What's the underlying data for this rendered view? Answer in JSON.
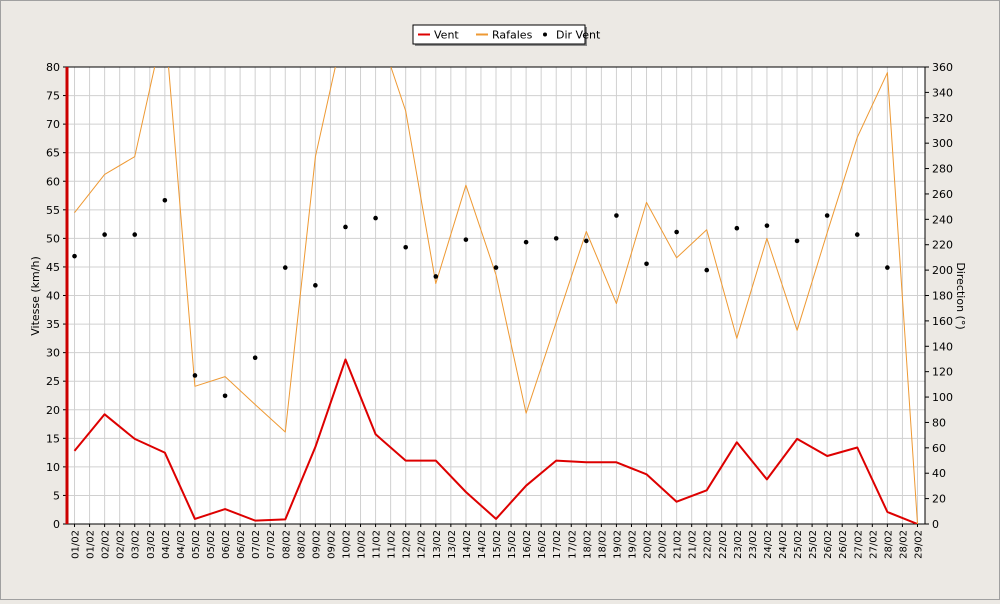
{
  "chart_data": {
    "type": "line",
    "legend": {
      "position": "top-center",
      "items": [
        {
          "name": "Vent",
          "color": "#dd0000",
          "marker": "line"
        },
        {
          "name": "Rafales",
          "color": "#ee9933",
          "marker": "line"
        },
        {
          "name": "Dir Vent",
          "color": "#000000",
          "marker": "dot"
        }
      ]
    },
    "ylabel": "Vitesse (km/h)",
    "y2label": "Direction (°)",
    "ylim": [
      0,
      80
    ],
    "y2lim": [
      0,
      360
    ],
    "yticks": [
      0,
      5,
      10,
      15,
      20,
      25,
      30,
      35,
      40,
      45,
      50,
      55,
      60,
      65,
      70,
      75,
      80
    ],
    "y2ticks": [
      0,
      20,
      40,
      60,
      80,
      100,
      120,
      140,
      160,
      180,
      200,
      220,
      240,
      260,
      280,
      300,
      320,
      340,
      360
    ],
    "grid": true,
    "x_labels": [
      "01/02",
      "01/02",
      "02/02",
      "02/02",
      "03/02",
      "03/02",
      "04/02",
      "04/02",
      "05/02",
      "05/02",
      "06/02",
      "06/02",
      "07/02",
      "07/02",
      "08/02",
      "08/02",
      "09/02",
      "09/02",
      "10/02",
      "10/02",
      "11/02",
      "11/02",
      "12/02",
      "12/02",
      "13/02",
      "13/02",
      "14/02",
      "14/02",
      "15/02",
      "15/02",
      "16/02",
      "16/02",
      "17/02",
      "17/02",
      "18/02",
      "18/02",
      "19/02",
      "19/02",
      "20/02",
      "20/02",
      "21/02",
      "21/02",
      "22/02",
      "22/02",
      "23/02",
      "23/02",
      "24/02",
      "24/02",
      "25/02",
      "25/02",
      "26/02",
      "26/02",
      "27/02",
      "27/02",
      "28/02",
      "28/02",
      "29/02"
    ],
    "x": [
      "01/02",
      "02/02",
      "03/02",
      "04/02",
      "05/02",
      "06/02",
      "07/02",
      "08/02",
      "09/02",
      "10/02",
      "11/02",
      "12/02",
      "13/02",
      "14/02",
      "15/02",
      "16/02",
      "17/02",
      "18/02",
      "19/02",
      "20/02",
      "21/02",
      "22/02",
      "23/02",
      "24/02",
      "25/02",
      "26/02",
      "27/02",
      "28/02",
      "29/02"
    ],
    "series": [
      {
        "name": "Vent",
        "color": "#dd0000",
        "axis": "left",
        "style": "line-thick",
        "values": [
          12.8,
          19.2,
          14.9,
          12.5,
          0.9,
          2.6,
          0.6,
          0.8,
          13.5,
          28.8,
          15.7,
          11.1,
          11.1,
          5.6,
          0.9,
          6.7,
          11.1,
          10.8,
          10.8,
          8.7,
          3.9,
          5.9,
          14.3,
          7.8,
          14.9,
          11.9,
          13.4,
          2.1,
          0.0
        ]
      },
      {
        "name": "Rafales",
        "color": "#ee9933",
        "axis": "left",
        "style": "line",
        "values": [
          54.5,
          61.2,
          64.3,
          88,
          24.1,
          25.8,
          20.9,
          16.1,
          64.3,
          88,
          88,
          72.3,
          42.1,
          59.3,
          43.6,
          19.4,
          35.3,
          51.2,
          38.6,
          56.3,
          46.6,
          51.5,
          32.5,
          50.0,
          33.9,
          51.0,
          67.7,
          79.0,
          0.0
        ]
      },
      {
        "name": "Dir Vent",
        "color": "#000000",
        "axis": "right",
        "style": "dots",
        "values": [
          211,
          228,
          228,
          255,
          117,
          101,
          131,
          202,
          188,
          234,
          241,
          218,
          195,
          224,
          202,
          222,
          225,
          223,
          243,
          205,
          230,
          200,
          233,
          235,
          223,
          243,
          228,
          202,
          null
        ]
      }
    ]
  }
}
